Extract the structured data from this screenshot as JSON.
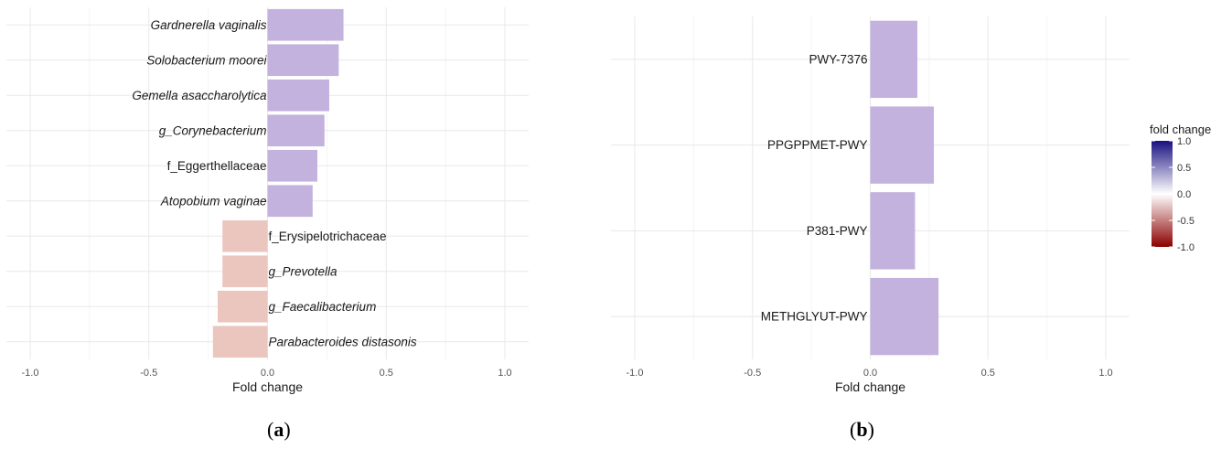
{
  "chart_data": [
    {
      "type": "bar",
      "orientation": "horizontal",
      "panel_label": "a",
      "xlabel": "Fold change",
      "xlim": [
        -1.1,
        1.1
      ],
      "x_ticks": [
        -1.0,
        -0.5,
        0.0,
        0.5,
        1.0
      ],
      "x_tick_labels": [
        "-1.0",
        "-0.5",
        "0.0",
        "0.5",
        "1.0"
      ],
      "grid": true,
      "categories": [
        "Gardnerella vaginalis",
        "Solobacterium moorei",
        "Gemella asaccharolytica",
        "g_Corynebacterium",
        "f_Eggerthellaceae",
        "Atopobium vaginae",
        "f_Erysipelotrichaceae",
        "g_Prevotella",
        "g_Faecalibacterium",
        "Parabacteroides distasonis"
      ],
      "italic": [
        true,
        true,
        true,
        true,
        false,
        true,
        false,
        true,
        true,
        true
      ],
      "values": [
        0.32,
        0.3,
        0.26,
        0.24,
        0.21,
        0.19,
        -0.19,
        -0.19,
        -0.21,
        -0.23
      ]
    },
    {
      "type": "bar",
      "orientation": "horizontal",
      "panel_label": "b",
      "xlabel": "Fold change",
      "xlim": [
        -1.1,
        1.1
      ],
      "x_ticks": [
        -1.0,
        -0.5,
        0.0,
        0.5,
        1.0
      ],
      "x_tick_labels": [
        "-1.0",
        "-0.5",
        "0.0",
        "0.5",
        "1.0"
      ],
      "grid": true,
      "categories": [
        "PWY-7376",
        "PPGPPMET-PWY",
        "P381-PWY",
        "METHGLYUT-PWY"
      ],
      "italic": [
        false,
        false,
        false,
        false
      ],
      "values": [
        0.2,
        0.27,
        0.19,
        0.29
      ]
    }
  ],
  "legend": {
    "title": "fold change",
    "placement": "right",
    "ticks": [
      1.0,
      0.5,
      0.0,
      -0.5,
      -1.0
    ],
    "tick_labels": [
      "1.0",
      "0.5",
      "0.0",
      "-0.5",
      "-1.0"
    ],
    "colors": {
      "high": "#1a1080",
      "mid": "#ffffff",
      "low": "#8b0000"
    }
  },
  "colors": {
    "positive": "#c3b2dd",
    "negative": "#ebc6bf",
    "grid_major": "#e8e8e8",
    "grid_minor": "#f4f4f4"
  },
  "captions": {
    "a": "a",
    "b": "b"
  }
}
